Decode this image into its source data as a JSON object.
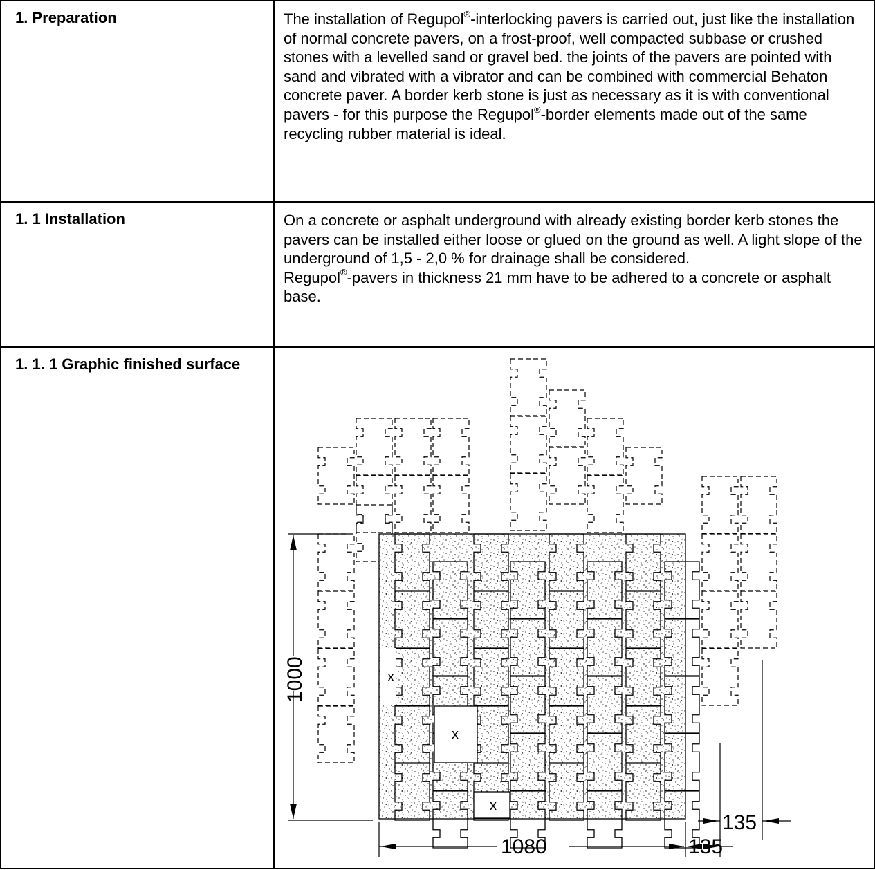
{
  "sections": [
    {
      "heading": "1. Preparation",
      "p1_a": "The installation of Regupol",
      "reg": "®",
      "p1_b": "-interlocking pavers is carried out, just like the installation of normal concrete pavers, on a frost-proof, well compacted subbase or crushed stones with a levelled sand or gravel bed. the joints of the pavers are pointed with sand and vibrated with a vibrator and can be combined with commercial Behaton concrete paver. A border kerb stone is just as necessary as it is with conventional pavers - for this purpose the Regupol",
      "p1_c": "-border elements made out of the same recycling rubber material is ideal."
    },
    {
      "heading": "1. 1 Installation",
      "p1": "On a concrete or asphalt underground with already existing border kerb stones the pavers can be installed either loose or glued on the ground as well. A light slope of the underground of 1,5 - 2,0 % for drainage shall be considered.",
      "p2_a": "Regupol",
      "p2_b": "-pavers in thickness 21 mm have to be adhered to a concrete or asphalt base."
    },
    {
      "heading": "1. 1. 1 Graphic finished surface"
    }
  ],
  "drawing": {
    "dim_height": "1000",
    "dim_width": "1080",
    "dim_offset_1": "135",
    "dim_offset_2": "135",
    "mark": "x"
  }
}
